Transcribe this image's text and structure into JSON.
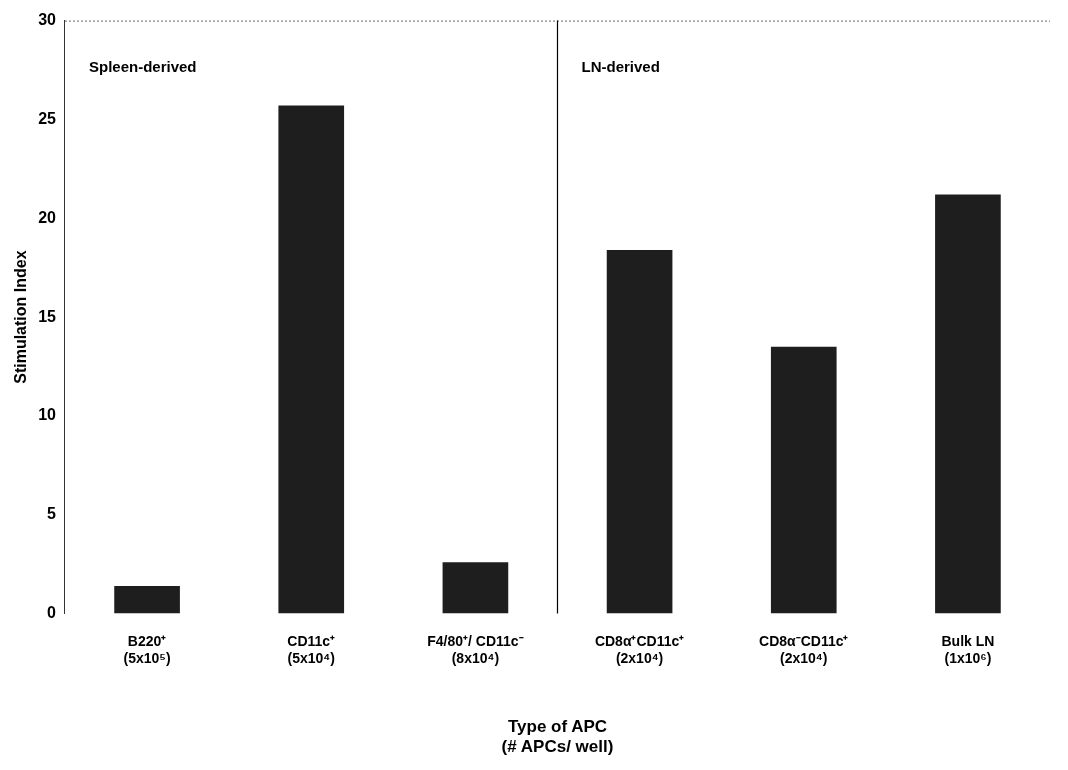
{
  "chart_data": {
    "type": "bar",
    "ylabel": "Stimulation Index",
    "xlabel": "Type of APC\n(# APCs/ well)",
    "categories": [
      "B220⁺\n(5x10⁵)",
      "CD11c⁺\n(5x10⁴)",
      "F4/80⁺/ CD11c⁻\n(8x10⁴)",
      "CD8α⁺CD11c⁺\n(2x10⁴)",
      "CD8α⁻CD11c⁺\n(2x10⁴)",
      "Bulk LN\n(1x10⁶)"
    ],
    "values": [
      1.4,
      25.7,
      2.6,
      18.4,
      13.5,
      21.2
    ],
    "color": "#1e1e1e",
    "ylim": [
      0,
      30
    ],
    "yticks": [
      0,
      5,
      10,
      15,
      20,
      25,
      30
    ],
    "annotations": [
      "Spleen-derived",
      "LN-derived"
    ],
    "grid": false,
    "legend": false
  }
}
